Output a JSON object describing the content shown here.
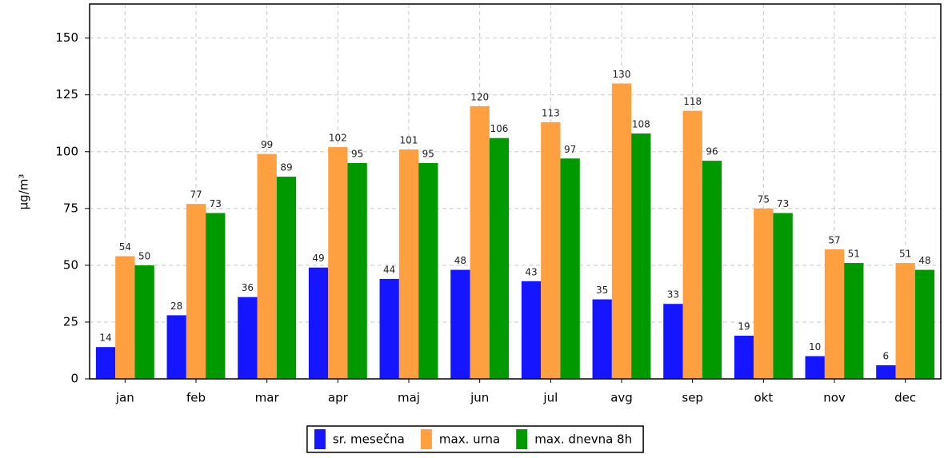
{
  "chart_data": {
    "type": "bar",
    "y_label": "µg/m³",
    "categories": [
      "jan",
      "feb",
      "mar",
      "apr",
      "maj",
      "jun",
      "jul",
      "avg",
      "sep",
      "okt",
      "nov",
      "dec"
    ],
    "series": [
      {
        "name": "sr. mesečna",
        "color": "#1515ff",
        "values": [
          14,
          28,
          36,
          49,
          44,
          48,
          43,
          35,
          33,
          19,
          10,
          6
        ]
      },
      {
        "name": "max. urna",
        "color": "#ffa040",
        "values": [
          54,
          77,
          99,
          102,
          101,
          120,
          113,
          130,
          118,
          75,
          57,
          51
        ]
      },
      {
        "name": "max. dnevna 8h",
        "color": "#009900",
        "values": [
          50,
          73,
          89,
          95,
          95,
          106,
          97,
          108,
          96,
          73,
          51,
          48
        ]
      }
    ],
    "ylim": [
      0,
      165
    ],
    "yticks": [
      0,
      25,
      50,
      75,
      100,
      125,
      150
    ],
    "grid": true,
    "legend": "bottom"
  }
}
